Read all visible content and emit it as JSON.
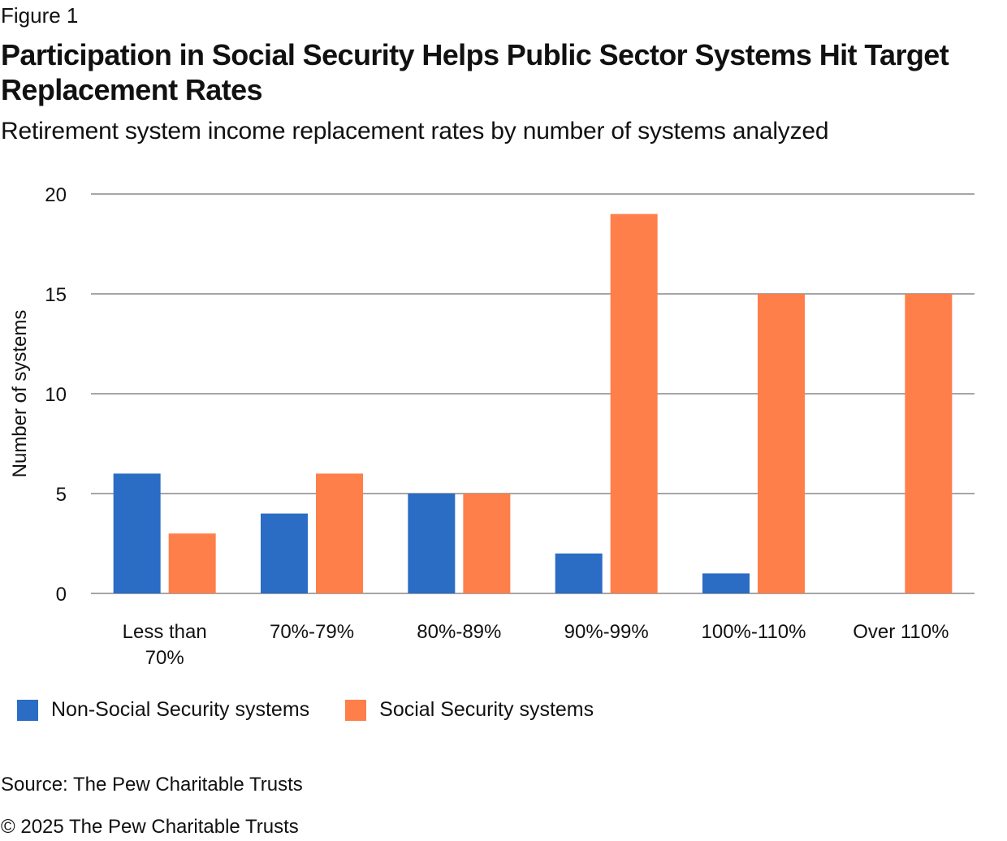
{
  "figure_label": "Figure 1",
  "title": "Participation in Social Security Helps Public Sector Systems Hit Target Replacement Rates",
  "subtitle": "Retirement system income replacement rates by number of systems analyzed",
  "source": "Source: The Pew Charitable Trusts",
  "copyright": "© 2025 The Pew Charitable Trusts",
  "chart_data": {
    "type": "bar",
    "title": "Participation in Social Security Helps Public Sector Systems Hit Target Replacement Rates",
    "subtitle": "Retirement system income replacement rates by number of systems analyzed",
    "xlabel": "",
    "ylabel": "Number of systems",
    "ylim": [
      0,
      20
    ],
    "yticks": [
      0,
      5,
      10,
      15,
      20
    ],
    "grid": true,
    "legend_position": "bottom-left",
    "categories": [
      [
        "Less than",
        "70%"
      ],
      [
        "70%-79%"
      ],
      [
        "80%-89%"
      ],
      [
        "90%-99%"
      ],
      [
        "100%-110%"
      ],
      [
        "Over 110%"
      ]
    ],
    "series": [
      {
        "name": "Non-Social Security systems",
        "color": "#2b6cc4",
        "values": [
          6,
          4,
          5,
          2,
          1,
          0
        ]
      },
      {
        "name": "Social Security systems",
        "color": "#ff7f4a",
        "values": [
          3,
          6,
          5,
          19,
          15,
          15
        ]
      }
    ]
  }
}
